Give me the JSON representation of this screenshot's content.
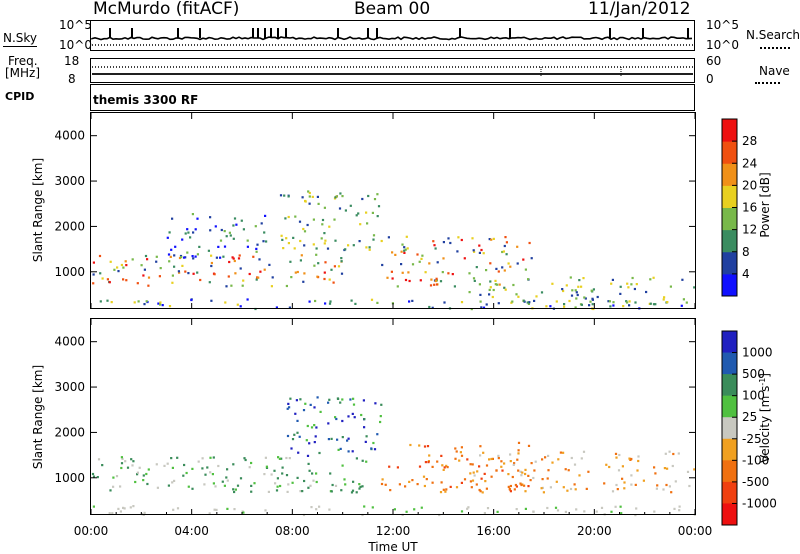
{
  "header": {
    "station": "McMurdo (fitACF)",
    "beam": "Beam 00",
    "date": "11/Jan/2012"
  },
  "strips": {
    "nsky_label": "N.Sky",
    "nsearch_label": "N.Search",
    "nsky_top": "10^5",
    "nsky_bottom": "10^0",
    "freq_label_1": "Freq.",
    "freq_label_2": "[MHz]",
    "freq_top": "18",
    "freq_bottom": "8",
    "nave_label": "Nave",
    "nave_top": "60",
    "nave_bottom": "0",
    "cpid_label": "CPID",
    "cpid_value": "themis 3300 RF"
  },
  "chart_data": [
    {
      "type": "heatmap",
      "name": "power_panel",
      "ylabel": "Slant Range [km]",
      "xlabel": "",
      "xlim": [
        "00:00",
        "24:00"
      ],
      "ylim": [
        180,
        4500
      ],
      "yticks": [
        "1000",
        "2000",
        "3000",
        "4000"
      ],
      "colorbar": {
        "label": "Power [dB]",
        "ticks": [
          "4",
          "8",
          "12",
          "16",
          "20",
          "24",
          "28"
        ],
        "colors": [
          "#1010ff",
          "#2040a0",
          "#3a8c60",
          "#78b84a",
          "#e8d020",
          "#f09018",
          "#f05010",
          "#ee1010"
        ]
      },
      "echo_regions": [
        {
          "t_start": 0.0,
          "t_end": 10.0,
          "range_low": 700,
          "range_high": 1400,
          "level": "medium-high"
        },
        {
          "t_start": 3.0,
          "t_end": 7.0,
          "range_low": 1300,
          "range_high": 2300,
          "level": "low-medium"
        },
        {
          "t_start": 7.5,
          "t_end": 11.5,
          "range_low": 1500,
          "range_high": 2800,
          "level": "medium"
        },
        {
          "t_start": 11.5,
          "t_end": 17.5,
          "range_low": 700,
          "range_high": 1800,
          "level": "medium-high"
        },
        {
          "t_start": 15.0,
          "t_end": 24.0,
          "range_low": 300,
          "range_high": 900,
          "level": "medium"
        },
        {
          "t_start": 0.0,
          "t_end": 24.0,
          "range_low": 180,
          "range_high": 420,
          "level": "mixed"
        }
      ]
    },
    {
      "type": "heatmap",
      "name": "velocity_panel",
      "ylabel": "Slant Range [km]",
      "xlabel": "Time UT",
      "xticks": [
        "00:00",
        "04:00",
        "08:00",
        "12:00",
        "16:00",
        "20:00",
        "00:00"
      ],
      "xlim": [
        "00:00",
        "24:00"
      ],
      "ylim": [
        180,
        4500
      ],
      "yticks": [
        "1000",
        "2000",
        "3000",
        "4000"
      ],
      "colorbar": {
        "label": "Velocity [m s",
        "label_sup": "-1",
        "label_end": "]",
        "ticks": [
          "1000",
          "500",
          "100",
          "25",
          "-25",
          "-100",
          "-500",
          "-1000"
        ],
        "colors": [
          "#2020c0",
          "#205ab0",
          "#3a8c5a",
          "#50c040",
          "#c8c8c0",
          "#f0a020",
          "#f07010",
          "#f04010",
          "#ee1010"
        ]
      },
      "echo_regions": [
        {
          "t_start": 0.0,
          "t_end": 11.0,
          "range_low": 700,
          "range_high": 1500,
          "velocity": "positive (green)"
        },
        {
          "t_start": 7.5,
          "t_end": 11.5,
          "range_low": 1500,
          "range_high": 2800,
          "velocity": "positive (green/blue)"
        },
        {
          "t_start": 11.5,
          "t_end": 17.5,
          "range_low": 700,
          "range_high": 1800,
          "velocity": "negative (orange)"
        },
        {
          "t_start": 15.0,
          "t_end": 24.0,
          "range_low": 700,
          "range_high": 1600,
          "velocity": "negative (orange/yellow)"
        },
        {
          "t_start": 0.0,
          "t_end": 24.0,
          "range_low": 180,
          "range_high": 400,
          "velocity": "ground scatter (gray)"
        }
      ]
    }
  ]
}
